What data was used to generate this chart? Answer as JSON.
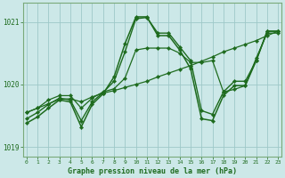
{
  "xlabel": "Graphe pression niveau de la mer (hPa)",
  "x": [
    0,
    1,
    2,
    3,
    4,
    5,
    6,
    7,
    8,
    9,
    10,
    11,
    12,
    13,
    14,
    15,
    16,
    17,
    18,
    19,
    20,
    21,
    22,
    23
  ],
  "series": [
    {
      "y": [
        1019.55,
        1019.62,
        1019.69,
        1019.76,
        1019.77,
        1019.72,
        1019.8,
        1019.86,
        1019.9,
        1019.95,
        1020.0,
        1020.05,
        1020.12,
        1020.18,
        1020.24,
        1020.3,
        1020.37,
        1020.44,
        1020.52,
        1020.58,
        1020.64,
        1020.7,
        1020.78,
        1020.85
      ],
      "color": "#1e6b1e",
      "linewidth": 0.9,
      "marker": "D",
      "markersize": 2.2
    },
    {
      "y": [
        1019.55,
        1019.62,
        1019.75,
        1019.82,
        1019.82,
        1019.62,
        1019.78,
        1019.88,
        1019.93,
        1020.1,
        1020.55,
        1020.58,
        1020.58,
        1020.58,
        1020.5,
        1020.35,
        1020.35,
        1020.38,
        1019.88,
        1019.92,
        1019.98,
        1020.42,
        1020.82,
        1020.82
      ],
      "color": "#1e6b1e",
      "linewidth": 0.9,
      "marker": "D",
      "markersize": 2.2
    },
    {
      "y": [
        1019.45,
        1019.55,
        1019.68,
        1019.78,
        1019.75,
        1019.42,
        1019.72,
        1019.87,
        1020.05,
        1020.52,
        1021.05,
        1021.07,
        1020.82,
        1020.82,
        1020.6,
        1020.38,
        1019.58,
        1019.52,
        1019.88,
        1020.05,
        1020.05,
        1020.38,
        1020.85,
        1020.85
      ],
      "color": "#1e6b1e",
      "linewidth": 1.0,
      "marker": "D",
      "markersize": 2.2
    },
    {
      "y": [
        1019.38,
        1019.48,
        1019.62,
        1019.75,
        1019.72,
        1019.32,
        1019.68,
        1019.85,
        1020.12,
        1020.65,
        1021.08,
        1021.08,
        1020.78,
        1020.78,
        1020.55,
        1020.25,
        1019.45,
        1019.42,
        1019.82,
        1019.98,
        1019.98,
        1020.38,
        1020.85,
        1020.85
      ],
      "color": "#1e6b1e",
      "linewidth": 1.1,
      "marker": "D",
      "markersize": 2.2
    }
  ],
  "ylim": [
    1018.85,
    1021.3
  ],
  "xlim": [
    -0.3,
    23.3
  ],
  "yticks": [
    1019.0,
    1020.0,
    1021.0
  ],
  "xticks": [
    0,
    1,
    2,
    3,
    4,
    5,
    6,
    7,
    8,
    9,
    10,
    11,
    12,
    13,
    14,
    15,
    16,
    17,
    18,
    19,
    20,
    21,
    22,
    23
  ],
  "bg_color": "#cce8e8",
  "grid_color": "#9ec8c8",
  "line_color": "#1e6b1e",
  "text_color": "#1e6b1e",
  "axis_color": "#1e6b1e",
  "border_color": "#7aaa7a"
}
